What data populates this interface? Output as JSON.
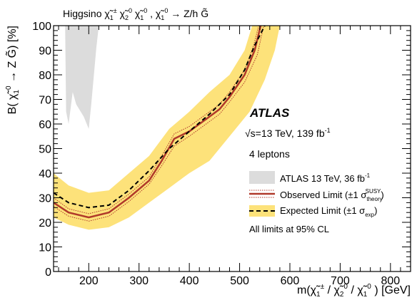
{
  "chart_data": {
    "type": "area",
    "title": "Higgsino χ̃₁± χ̃₂⁰ χ̃₁⁰,  χ̃₁⁰ → Z/h G̃",
    "xlabel": "m(χ̃₁± / χ̃₂⁰ / χ̃₁⁰) [GeV]",
    "ylabel": "B(χ̃₁⁰ → Z G̃) [%]",
    "xlim": [
      130,
      840
    ],
    "ylim": [
      0,
      100
    ],
    "x_ticks": [
      200,
      300,
      400,
      500,
      600,
      700,
      800
    ],
    "x_tick_labels": [
      "200",
      "300",
      "400",
      "500",
      "600",
      "700",
      "800"
    ],
    "y_ticks": [
      0,
      10,
      20,
      30,
      40,
      50,
      60,
      70,
      80,
      90,
      100
    ],
    "y_tick_labels": [
      "0",
      "10",
      "20",
      "30",
      "40",
      "50",
      "60",
      "70",
      "80",
      "90",
      "100"
    ],
    "colors": {
      "previous": "#dcdcdc",
      "observed": "#b0392a",
      "band": "#fde27a",
      "expected": "#000000"
    },
    "annotations": {
      "experiment": "ATLAS",
      "energy": "√s=13 TeV, 139 fb⁻¹",
      "channel": "4 leptons",
      "footnote": "All limits at 95% CL"
    },
    "legend": [
      {
        "label": "ATLAS 13 TeV, 36 fb⁻¹",
        "style": "fill-grey"
      },
      {
        "label": "Observed Limit (±1 σ_theory^SUSY)",
        "style": "solid-red"
      },
      {
        "label": "Expected Limit (±1 σ_exp)",
        "style": "dashed-black-yellow"
      }
    ],
    "legend_position": "right",
    "previous_region": [
      {
        "x": 160,
        "y": 100
      },
      {
        "x": 220,
        "y": 100
      },
      {
        "x": 215,
        "y": 91
      },
      {
        "x": 205,
        "y": 68
      },
      {
        "x": 200,
        "y": 58
      },
      {
        "x": 190,
        "y": 63
      },
      {
        "x": 175,
        "y": 68
      },
      {
        "x": 168,
        "y": 73
      },
      {
        "x": 160,
        "y": 60
      },
      {
        "x": 155,
        "y": 65
      },
      {
        "x": 153,
        "y": 100
      }
    ],
    "band_upper": [
      {
        "x": 130,
        "y": 40
      },
      {
        "x": 160,
        "y": 35
      },
      {
        "x": 200,
        "y": 32
      },
      {
        "x": 240,
        "y": 33
      },
      {
        "x": 280,
        "y": 40
      },
      {
        "x": 320,
        "y": 47
      },
      {
        "x": 360,
        "y": 58
      },
      {
        "x": 400,
        "y": 65
      },
      {
        "x": 440,
        "y": 73
      },
      {
        "x": 480,
        "y": 80
      },
      {
        "x": 510,
        "y": 90
      },
      {
        "x": 525,
        "y": 100
      }
    ],
    "band_lower": [
      {
        "x": 580,
        "y": 100
      },
      {
        "x": 570,
        "y": 90
      },
      {
        "x": 550,
        "y": 78
      },
      {
        "x": 520,
        "y": 65
      },
      {
        "x": 480,
        "y": 55
      },
      {
        "x": 440,
        "y": 45
      },
      {
        "x": 400,
        "y": 40
      },
      {
        "x": 360,
        "y": 34
      },
      {
        "x": 320,
        "y": 28
      },
      {
        "x": 280,
        "y": 22
      },
      {
        "x": 240,
        "y": 18
      },
      {
        "x": 200,
        "y": 17
      },
      {
        "x": 160,
        "y": 19
      },
      {
        "x": 130,
        "y": 22
      }
    ],
    "expected": [
      {
        "x": 130,
        "y": 32
      },
      {
        "x": 160,
        "y": 28
      },
      {
        "x": 200,
        "y": 26
      },
      {
        "x": 240,
        "y": 27
      },
      {
        "x": 280,
        "y": 33
      },
      {
        "x": 320,
        "y": 41
      },
      {
        "x": 360,
        "y": 50
      },
      {
        "x": 400,
        "y": 57
      },
      {
        "x": 440,
        "y": 64
      },
      {
        "x": 480,
        "y": 72
      },
      {
        "x": 510,
        "y": 82
      },
      {
        "x": 530,
        "y": 92
      },
      {
        "x": 550,
        "y": 100
      }
    ],
    "observed": [
      {
        "x": 130,
        "y": 28
      },
      {
        "x": 160,
        "y": 24
      },
      {
        "x": 200,
        "y": 22
      },
      {
        "x": 240,
        "y": 24
      },
      {
        "x": 280,
        "y": 30
      },
      {
        "x": 320,
        "y": 37
      },
      {
        "x": 345,
        "y": 45
      },
      {
        "x": 370,
        "y": 54
      },
      {
        "x": 400,
        "y": 57
      },
      {
        "x": 440,
        "y": 63
      },
      {
        "x": 460,
        "y": 66
      },
      {
        "x": 480,
        "y": 71
      },
      {
        "x": 510,
        "y": 80
      },
      {
        "x": 530,
        "y": 90
      },
      {
        "x": 542,
        "y": 100
      }
    ],
    "observed_theory_up": [
      {
        "x": 130,
        "y": 30
      },
      {
        "x": 160,
        "y": 25.5
      },
      {
        "x": 200,
        "y": 23.5
      },
      {
        "x": 240,
        "y": 25.5
      },
      {
        "x": 280,
        "y": 31.5
      },
      {
        "x": 320,
        "y": 38.5
      },
      {
        "x": 345,
        "y": 47
      },
      {
        "x": 370,
        "y": 56
      },
      {
        "x": 400,
        "y": 59
      },
      {
        "x": 440,
        "y": 65
      },
      {
        "x": 460,
        "y": 68
      },
      {
        "x": 480,
        "y": 73
      },
      {
        "x": 510,
        "y": 82
      },
      {
        "x": 528,
        "y": 92
      },
      {
        "x": 538,
        "y": 100
      }
    ],
    "observed_theory_down": [
      {
        "x": 130,
        "y": 26.5
      },
      {
        "x": 160,
        "y": 22.5
      },
      {
        "x": 200,
        "y": 20.5
      },
      {
        "x": 240,
        "y": 22.5
      },
      {
        "x": 280,
        "y": 28.5
      },
      {
        "x": 320,
        "y": 35.5
      },
      {
        "x": 345,
        "y": 43
      },
      {
        "x": 370,
        "y": 51
      },
      {
        "x": 400,
        "y": 55
      },
      {
        "x": 440,
        "y": 61
      },
      {
        "x": 460,
        "y": 64
      },
      {
        "x": 480,
        "y": 69
      },
      {
        "x": 510,
        "y": 77
      },
      {
        "x": 535,
        "y": 88
      },
      {
        "x": 548,
        "y": 100
      }
    ]
  }
}
